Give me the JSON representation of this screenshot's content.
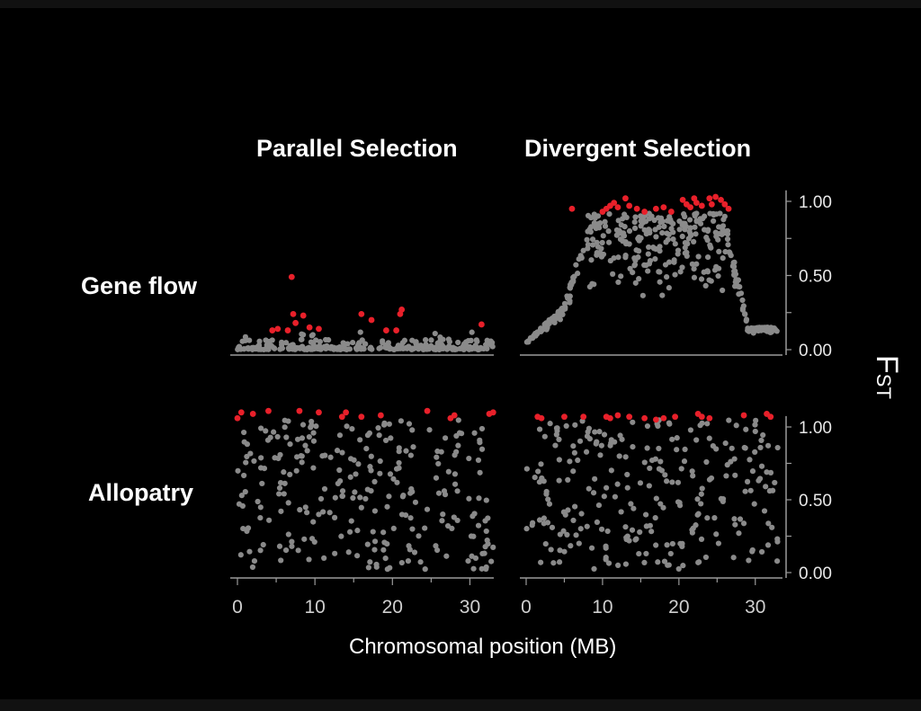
{
  "column_titles": {
    "parallel": "Parallel Selection",
    "divergent": "Divergent Selection"
  },
  "row_labels": {
    "gene_flow": "Gene flow",
    "allopatry": "Allopatry"
  },
  "x_axis_label": "Chromosomal position (MB)",
  "y_axis_label": {
    "main": "F",
    "sub": "ST"
  },
  "colors": {
    "background": "#000000",
    "neutral": "#8a8a8a",
    "outlier": "#e8202a",
    "axis": "#9a9a9a"
  },
  "chart_data": {
    "type": "scatter",
    "xlabel": "Chromosomal position (MB)",
    "ylabel": "FST",
    "xlim": [
      0,
      33
    ],
    "x_ticks": [
      "0",
      "10",
      "20",
      "30"
    ],
    "y_ticks": [
      "0.00",
      "0.50",
      "1.00"
    ],
    "ylim": [
      0,
      1.05
    ],
    "panels": [
      {
        "row": "Gene flow",
        "column": "Parallel Selection",
        "outliers": [
          [
            4.5,
            0.13
          ],
          [
            5.2,
            0.14
          ],
          [
            6.5,
            0.13
          ],
          [
            7.0,
            0.49
          ],
          [
            7.2,
            0.24
          ],
          [
            7.5,
            0.18
          ],
          [
            8.5,
            0.23
          ],
          [
            9.3,
            0.15
          ],
          [
            10.5,
            0.14
          ],
          [
            16.0,
            0.24
          ],
          [
            17.3,
            0.2
          ],
          [
            19.2,
            0.13
          ],
          [
            20.5,
            0.13
          ],
          [
            21.0,
            0.24
          ],
          [
            21.2,
            0.27
          ],
          [
            31.5,
            0.17
          ]
        ],
        "neutral_profile": "most loci FST 0.00-0.10 across 0-33 MB"
      },
      {
        "row": "Gene flow",
        "column": "Divergent Selection",
        "outliers": [
          [
            6.0,
            0.95
          ],
          [
            10.0,
            0.93
          ],
          [
            10.5,
            0.95
          ],
          [
            11.0,
            0.97
          ],
          [
            11.5,
            0.99
          ],
          [
            12.0,
            0.96
          ],
          [
            13.0,
            1.02
          ],
          [
            13.5,
            0.97
          ],
          [
            14.5,
            0.95
          ],
          [
            15.5,
            0.93
          ],
          [
            17.0,
            0.95
          ],
          [
            18.0,
            0.96
          ],
          [
            19.0,
            0.93
          ],
          [
            20.5,
            1.01
          ],
          [
            21.0,
            0.98
          ],
          [
            21.5,
            0.96
          ],
          [
            22.0,
            1.02
          ],
          [
            22.3,
            0.99
          ],
          [
            23.0,
            0.97
          ],
          [
            24.0,
            1.02
          ],
          [
            24.3,
            0.98
          ],
          [
            24.8,
            1.03
          ],
          [
            25.5,
            1.01
          ],
          [
            26.0,
            0.98
          ],
          [
            26.5,
            0.95
          ]
        ],
        "neutral_profile": "FST rises from ~0.05 near 0 MB to 0.6-0.95 between 6 and 26 MB, then falls to ~0.05 by 33 MB"
      },
      {
        "row": "Allopatry",
        "column": "Parallel Selection",
        "outliers": [
          [
            0.0,
            1.06
          ],
          [
            0.5,
            1.1
          ],
          [
            2.0,
            1.09
          ],
          [
            4.0,
            1.11
          ],
          [
            8.0,
            1.11
          ],
          [
            10.5,
            1.1
          ],
          [
            13.5,
            1.07
          ],
          [
            14.0,
            1.1
          ],
          [
            16.0,
            1.07
          ],
          [
            18.5,
            1.08
          ],
          [
            24.5,
            1.11
          ],
          [
            27.5,
            1.06
          ],
          [
            28.0,
            1.08
          ],
          [
            32.5,
            1.09
          ],
          [
            33.0,
            1.1
          ]
        ],
        "neutral_profile": "FST scattered uniformly between 0.00 and 1.05"
      },
      {
        "row": "Allopatry",
        "column": "Divergent Selection",
        "outliers": [
          [
            1.5,
            1.07
          ],
          [
            2.0,
            1.06
          ],
          [
            5.0,
            1.07
          ],
          [
            7.5,
            1.07
          ],
          [
            10.5,
            1.07
          ],
          [
            11.0,
            1.06
          ],
          [
            12.0,
            1.08
          ],
          [
            13.5,
            1.07
          ],
          [
            15.5,
            1.06
          ],
          [
            17.0,
            1.05
          ],
          [
            18.0,
            1.06
          ],
          [
            19.5,
            1.07
          ],
          [
            22.5,
            1.09
          ],
          [
            23.0,
            1.07
          ],
          [
            24.0,
            1.06
          ],
          [
            28.5,
            1.08
          ],
          [
            31.5,
            1.09
          ],
          [
            32.0,
            1.07
          ]
        ],
        "neutral_profile": "FST scattered uniformly between 0.00 and 1.05"
      }
    ]
  }
}
